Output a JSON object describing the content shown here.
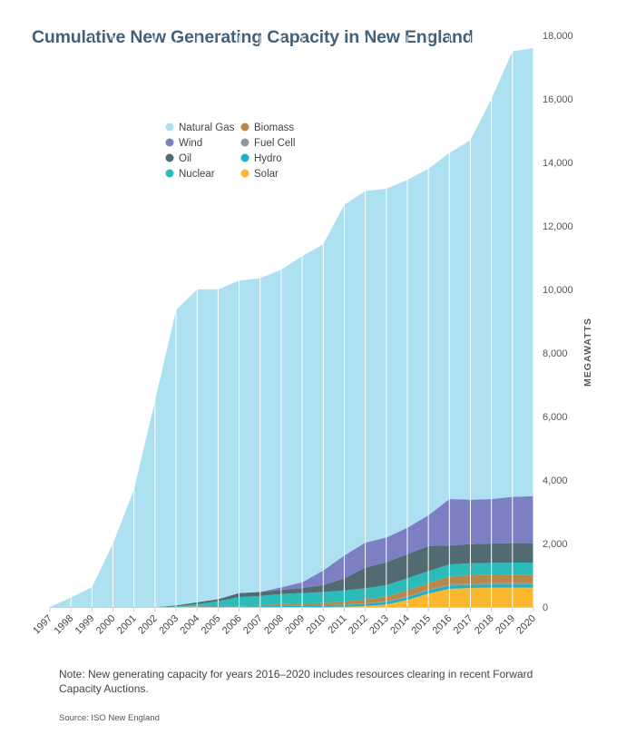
{
  "chart_data": {
    "type": "area",
    "stacked": true,
    "title": "Cumulative New Generating Capacity in New England",
    "ylabel": "MEGAWATTS",
    "xlabel": "",
    "ylim": [
      0,
      18000
    ],
    "yticks": [
      0,
      2000,
      4000,
      6000,
      8000,
      10000,
      12000,
      14000,
      16000,
      18000
    ],
    "ytick_labels": [
      "0",
      "2,000",
      "4,000",
      "6,000",
      "8,000",
      "10,000",
      "12,000",
      "14,000",
      "16,000",
      "18,000"
    ],
    "categories": [
      "1997",
      "1998",
      "1999",
      "2000",
      "2001",
      "2002",
      "2003",
      "2004",
      "2005",
      "2006",
      "2007",
      "2008",
      "2009",
      "2010",
      "2011",
      "2012",
      "2013",
      "2014",
      "2015",
      "2016",
      "2017",
      "2018",
      "2019",
      "2020"
    ],
    "legend_position": "upper-left",
    "series": [
      {
        "name": "Solar",
        "color": "#fbb82e",
        "values": [
          0,
          0,
          0,
          0,
          0,
          0,
          0,
          0,
          0,
          0,
          0,
          0,
          0,
          0,
          10,
          30,
          80,
          220,
          420,
          570,
          600,
          610,
          610,
          610
        ]
      },
      {
        "name": "Hydro",
        "color": "#1fb0c8",
        "values": [
          0,
          0,
          0,
          0,
          0,
          0,
          0,
          10,
          15,
          20,
          25,
          30,
          40,
          50,
          60,
          70,
          80,
          90,
          100,
          100,
          100,
          100,
          100,
          100
        ]
      },
      {
        "name": "Fuel Cell",
        "color": "#8a9aa0",
        "values": [
          0,
          0,
          0,
          0,
          0,
          0,
          0,
          0,
          0,
          0,
          0,
          0,
          0,
          0,
          10,
          10,
          20,
          25,
          30,
          40,
          40,
          40,
          40,
          40
        ]
      },
      {
        "name": "Biomass",
        "color": "#b8884a",
        "values": [
          0,
          0,
          0,
          0,
          0,
          0,
          0,
          20,
          30,
          30,
          40,
          60,
          70,
          70,
          90,
          130,
          150,
          190,
          200,
          250,
          260,
          260,
          270,
          270
        ]
      },
      {
        "name": "Nuclear",
        "color": "#2bbcba",
        "values": [
          0,
          0,
          0,
          0,
          0,
          0,
          20,
          60,
          140,
          260,
          280,
          320,
          330,
          350,
          350,
          350,
          360,
          380,
          380,
          380,
          380,
          380,
          380,
          380
        ]
      },
      {
        "name": "Oil",
        "color": "#526a72",
        "values": [
          0,
          0,
          0,
          0,
          0,
          0,
          30,
          60,
          60,
          130,
          130,
          130,
          160,
          220,
          380,
          650,
          720,
          760,
          790,
          600,
          600,
          610,
          610,
          610
        ]
      },
      {
        "name": "Wind",
        "color": "#7c7fc4",
        "values": [
          0,
          0,
          0,
          0,
          0,
          0,
          0,
          0,
          0,
          0,
          0,
          80,
          180,
          460,
          720,
          790,
          780,
          830,
          970,
          1460,
          1400,
          1400,
          1460,
          1480
        ]
      },
      {
        "name": "Natural Gas",
        "color": "#ade0f0",
        "values": [
          0,
          300,
          620,
          2000,
          3700,
          6500,
          9300,
          9850,
          9755,
          9840,
          9880,
          10000,
          10270,
          10270,
          11040,
          11070,
          10980,
          10955,
          10910,
          10900,
          11320,
          12600,
          14030,
          14110
        ]
      }
    ],
    "legend": [
      {
        "name": "Natural Gas",
        "color": "#ade0f0"
      },
      {
        "name": "Biomass",
        "color": "#b8884a"
      },
      {
        "name": "Wind",
        "color": "#7c7fc4"
      },
      {
        "name": "Fuel Cell",
        "color": "#8a9aa0"
      },
      {
        "name": "Oil",
        "color": "#526a72"
      },
      {
        "name": "Hydro",
        "color": "#1fb0c8"
      },
      {
        "name": "Nuclear",
        "color": "#2bbcba"
      },
      {
        "name": "Solar",
        "color": "#fbb82e"
      }
    ]
  },
  "note": "Note:  New generating capacity for years 2016–2020 includes resources clearing in recent Forward Capacity Auctions.",
  "source": "Source: ISO New England",
  "colors": {
    "title": "#44617a",
    "gridline": "#ffffff",
    "axis": "#cfcfcf"
  }
}
